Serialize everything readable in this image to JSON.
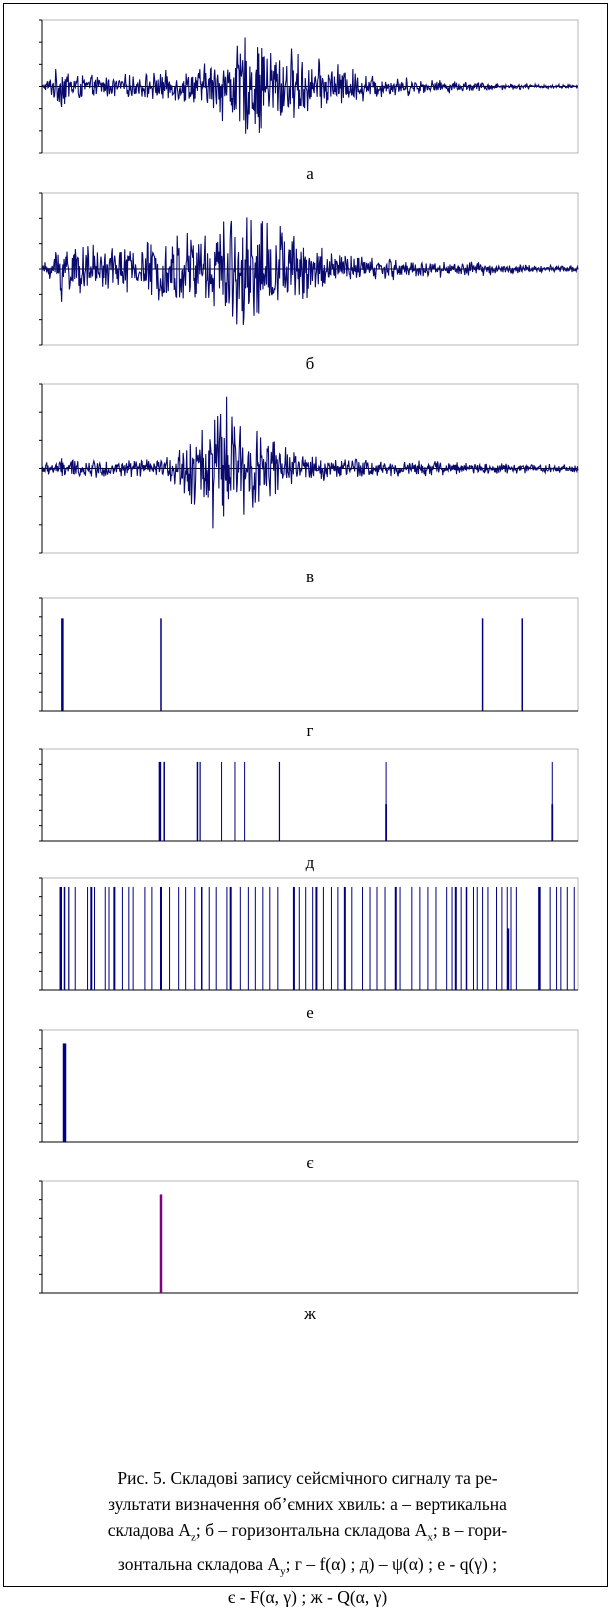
{
  "chart_data": [
    {
      "type": "line",
      "panel_label": "а",
      "signal": "seismic-waveform",
      "ylim": [
        -1,
        1
      ],
      "envelope": [
        0.03,
        0.42,
        0.18,
        0.2,
        0.2,
        0.24,
        0.26,
        0.3,
        0.4,
        0.48,
        0.62,
        0.72,
        0.88,
        0.8,
        0.9,
        0.78,
        0.66,
        0.6,
        0.48,
        0.44,
        0.42,
        0.38,
        0.32,
        0.26,
        0.22,
        0.2,
        0.18,
        0.16,
        0.14,
        0.12,
        0.1,
        0.08,
        0.06,
        0.05,
        0.04,
        0.03
      ],
      "envelope_x": [
        0,
        0.04,
        0.08,
        0.12,
        0.16,
        0.2,
        0.24,
        0.28,
        0.3,
        0.32,
        0.34,
        0.36,
        0.38,
        0.4,
        0.42,
        0.44,
        0.46,
        0.48,
        0.5,
        0.52,
        0.54,
        0.56,
        0.58,
        0.6,
        0.62,
        0.64,
        0.66,
        0.68,
        0.7,
        0.74,
        0.78,
        0.82,
        0.86,
        0.9,
        0.95,
        1.0
      ]
    },
    {
      "type": "line",
      "panel_label": "б",
      "signal": "seismic-waveform",
      "ylim": [
        -1,
        1
      ],
      "envelope": [
        0.03,
        0.55,
        0.35,
        0.35,
        0.4,
        0.42,
        0.45,
        0.5,
        0.58,
        0.62,
        0.68,
        0.7,
        0.72,
        0.8,
        0.95,
        0.85,
        0.78,
        0.7,
        0.6,
        0.5,
        0.42,
        0.36,
        0.32,
        0.28,
        0.24,
        0.2,
        0.16,
        0.14,
        0.12,
        0.1,
        0.08,
        0.06,
        0.05
      ],
      "envelope_x": [
        0,
        0.04,
        0.08,
        0.12,
        0.16,
        0.2,
        0.22,
        0.24,
        0.26,
        0.28,
        0.3,
        0.32,
        0.34,
        0.36,
        0.38,
        0.4,
        0.42,
        0.44,
        0.46,
        0.48,
        0.5,
        0.52,
        0.54,
        0.56,
        0.58,
        0.62,
        0.66,
        0.7,
        0.76,
        0.82,
        0.88,
        0.94,
        1.0
      ]
    },
    {
      "type": "line",
      "panel_label": "в",
      "signal": "seismic-waveform",
      "ylim": [
        -1,
        1
      ],
      "envelope": [
        0.08,
        0.14,
        0.12,
        0.12,
        0.12,
        0.14,
        0.18,
        0.35,
        0.5,
        0.62,
        0.85,
        0.95,
        0.8,
        0.7,
        0.55,
        0.45,
        0.36,
        0.28,
        0.22,
        0.18,
        0.15,
        0.12,
        0.1,
        0.08,
        0.07,
        0.06
      ],
      "envelope_x": [
        0,
        0.04,
        0.1,
        0.16,
        0.2,
        0.22,
        0.24,
        0.26,
        0.28,
        0.3,
        0.32,
        0.34,
        0.36,
        0.38,
        0.4,
        0.42,
        0.44,
        0.46,
        0.48,
        0.52,
        0.58,
        0.66,
        0.76,
        0.86,
        0.94,
        1.0
      ]
    },
    {
      "type": "bar",
      "panel_label": "г",
      "ylim": [
        0,
        1
      ],
      "color": "#000080",
      "bars": [
        {
          "x": 0.038,
          "h": 0.82,
          "w": 2.5
        },
        {
          "x": 0.222,
          "h": 0.82,
          "w": 1.5
        },
        {
          "x": 0.822,
          "h": 0.82,
          "w": 1.5
        },
        {
          "x": 0.896,
          "h": 0.82,
          "w": 1.5
        }
      ]
    },
    {
      "type": "bar",
      "panel_label": "д",
      "ylim": [
        0,
        1
      ],
      "color": "#000080",
      "bars": [
        {
          "x": 0.22,
          "h": 0.86,
          "w": 2.5
        },
        {
          "x": 0.228,
          "h": 0.86,
          "w": 1.5
        },
        {
          "x": 0.29,
          "h": 0.86,
          "w": 1.5
        },
        {
          "x": 0.295,
          "h": 0.86,
          "w": 1.2
        },
        {
          "x": 0.335,
          "h": 0.86,
          "w": 1.0
        },
        {
          "x": 0.36,
          "h": 0.86,
          "w": 1.0
        },
        {
          "x": 0.378,
          "h": 0.86,
          "w": 1.0
        },
        {
          "x": 0.443,
          "h": 0.86,
          "w": 1.2
        },
        {
          "x": 0.642,
          "h": 0.86,
          "w": 1.0
        },
        {
          "x": 0.642,
          "h": 0.4,
          "w": 1.8
        },
        {
          "x": 0.952,
          "h": 0.86,
          "w": 1.0
        },
        {
          "x": 0.952,
          "h": 0.4,
          "w": 1.8
        }
      ]
    },
    {
      "type": "bar",
      "panel_label": "е",
      "ylim": [
        0,
        1
      ],
      "color": "#000080",
      "bars": [
        {
          "x": 0.035,
          "h": 0.92,
          "w": 2.5
        },
        {
          "x": 0.042,
          "h": 0.92,
          "w": 1.5
        },
        {
          "x": 0.05,
          "h": 0.92,
          "w": 1.2
        },
        {
          "x": 0.062,
          "h": 0.92,
          "w": 1.0
        },
        {
          "x": 0.085,
          "h": 0.92,
          "w": 1.0
        },
        {
          "x": 0.092,
          "h": 0.92,
          "w": 2.0
        },
        {
          "x": 0.098,
          "h": 0.92,
          "w": 1.0
        },
        {
          "x": 0.118,
          "h": 0.92,
          "w": 1.0
        },
        {
          "x": 0.125,
          "h": 0.92,
          "w": 1.0
        },
        {
          "x": 0.135,
          "h": 0.92,
          "w": 2.0
        },
        {
          "x": 0.15,
          "h": 0.92,
          "w": 1.0
        },
        {
          "x": 0.162,
          "h": 0.92,
          "w": 1.0
        },
        {
          "x": 0.17,
          "h": 0.92,
          "w": 1.0
        },
        {
          "x": 0.192,
          "h": 0.92,
          "w": 1.0
        },
        {
          "x": 0.205,
          "h": 0.92,
          "w": 1.0
        },
        {
          "x": 0.222,
          "h": 0.92,
          "w": 2.0
        },
        {
          "x": 0.238,
          "h": 0.92,
          "w": 1.0
        },
        {
          "x": 0.255,
          "h": 0.92,
          "w": 1.0
        },
        {
          "x": 0.268,
          "h": 0.92,
          "w": 1.0
        },
        {
          "x": 0.285,
          "h": 0.92,
          "w": 1.0
        },
        {
          "x": 0.298,
          "h": 0.92,
          "w": 1.5
        },
        {
          "x": 0.312,
          "h": 0.92,
          "w": 1.0
        },
        {
          "x": 0.325,
          "h": 0.92,
          "w": 1.0
        },
        {
          "x": 0.345,
          "h": 0.92,
          "w": 1.0
        },
        {
          "x": 0.352,
          "h": 0.92,
          "w": 2.0
        },
        {
          "x": 0.37,
          "h": 0.92,
          "w": 1.0
        },
        {
          "x": 0.385,
          "h": 0.92,
          "w": 1.0
        },
        {
          "x": 0.398,
          "h": 0.92,
          "w": 1.0
        },
        {
          "x": 0.412,
          "h": 0.92,
          "w": 1.0
        },
        {
          "x": 0.425,
          "h": 0.92,
          "w": 1.0
        },
        {
          "x": 0.44,
          "h": 0.92,
          "w": 1.0
        },
        {
          "x": 0.47,
          "h": 0.92,
          "w": 2.0
        },
        {
          "x": 0.48,
          "h": 0.92,
          "w": 1.0
        },
        {
          "x": 0.492,
          "h": 0.92,
          "w": 1.0
        },
        {
          "x": 0.505,
          "h": 0.92,
          "w": 1.0
        },
        {
          "x": 0.512,
          "h": 0.92,
          "w": 2.0
        },
        {
          "x": 0.525,
          "h": 0.92,
          "w": 1.0
        },
        {
          "x": 0.54,
          "h": 0.92,
          "w": 1.0
        },
        {
          "x": 0.552,
          "h": 0.92,
          "w": 1.0
        },
        {
          "x": 0.565,
          "h": 0.92,
          "w": 2.0
        },
        {
          "x": 0.578,
          "h": 0.92,
          "w": 1.0
        },
        {
          "x": 0.598,
          "h": 0.92,
          "w": 1.0
        },
        {
          "x": 0.612,
          "h": 0.92,
          "w": 1.0
        },
        {
          "x": 0.625,
          "h": 0.92,
          "w": 1.0
        },
        {
          "x": 0.64,
          "h": 0.92,
          "w": 1.0
        },
        {
          "x": 0.66,
          "h": 0.92,
          "w": 2.0
        },
        {
          "x": 0.668,
          "h": 0.92,
          "w": 1.0
        },
        {
          "x": 0.69,
          "h": 0.92,
          "w": 1.0
        },
        {
          "x": 0.705,
          "h": 0.92,
          "w": 1.0
        },
        {
          "x": 0.72,
          "h": 0.92,
          "w": 1.0
        },
        {
          "x": 0.735,
          "h": 0.92,
          "w": 1.0
        },
        {
          "x": 0.755,
          "h": 0.92,
          "w": 1.0
        },
        {
          "x": 0.765,
          "h": 0.92,
          "w": 1.0
        },
        {
          "x": 0.772,
          "h": 0.92,
          "w": 2.0
        },
        {
          "x": 0.782,
          "h": 0.92,
          "w": 1.0
        },
        {
          "x": 0.792,
          "h": 0.92,
          "w": 1.5
        },
        {
          "x": 0.805,
          "h": 0.92,
          "w": 1.0
        },
        {
          "x": 0.812,
          "h": 0.92,
          "w": 1.0
        },
        {
          "x": 0.822,
          "h": 0.92,
          "w": 1.0
        },
        {
          "x": 0.832,
          "h": 0.92,
          "w": 1.0
        },
        {
          "x": 0.848,
          "h": 0.92,
          "w": 1.0
        },
        {
          "x": 0.858,
          "h": 0.92,
          "w": 1.0
        },
        {
          "x": 0.868,
          "h": 0.92,
          "w": 1.0
        },
        {
          "x": 0.875,
          "h": 0.92,
          "w": 1.0
        },
        {
          "x": 0.885,
          "h": 0.92,
          "w": 1.0
        },
        {
          "x": 0.87,
          "h": 0.55,
          "w": 1.8
        },
        {
          "x": 0.928,
          "h": 0.92,
          "w": 2.5
        },
        {
          "x": 0.948,
          "h": 0.92,
          "w": 1.0
        },
        {
          "x": 0.96,
          "h": 0.92,
          "w": 1.0
        },
        {
          "x": 0.968,
          "h": 0.92,
          "w": 1.0
        },
        {
          "x": 0.98,
          "h": 0.92,
          "w": 1.0
        },
        {
          "x": 0.993,
          "h": 0.92,
          "w": 1.0
        }
      ]
    },
    {
      "type": "bar",
      "panel_label": "є",
      "ylim": [
        0,
        1
      ],
      "color": "#000080",
      "bars": [
        {
          "x": 0.042,
          "h": 0.88,
          "w": 3.5
        }
      ]
    },
    {
      "type": "bar",
      "panel_label": "ж",
      "ylim": [
        0,
        1
      ],
      "color": "#800080",
      "bars": [
        {
          "x": 0.222,
          "h": 0.88,
          "w": 2.5
        }
      ]
    }
  ],
  "caption": {
    "line1": "Рис. 5. Складові запису сейсмічного сигналу та ре-",
    "line2": "зультати визначення об’ємних хвиль: а – вертикальна",
    "line3_pre": "складова A",
    "line3_sub1": "z",
    "line3_mid": "; б – горизонтальна складова A",
    "line3_sub2": "x",
    "line3_post": "; в – гори-",
    "line4_pre": "зонтальна складова A",
    "line4_sub": "y",
    "line4_post": "; г – f(α) ; д) – ψ(α) ; е - q(γ) ;",
    "line5": "є - F(α, γ) ; ж - Q(α, γ)"
  },
  "colors": {
    "signal": "#0a0a6e",
    "bar": "#000080",
    "accent_bar": "#800080",
    "axis": "#000000",
    "frame": "#a6a6a6"
  }
}
